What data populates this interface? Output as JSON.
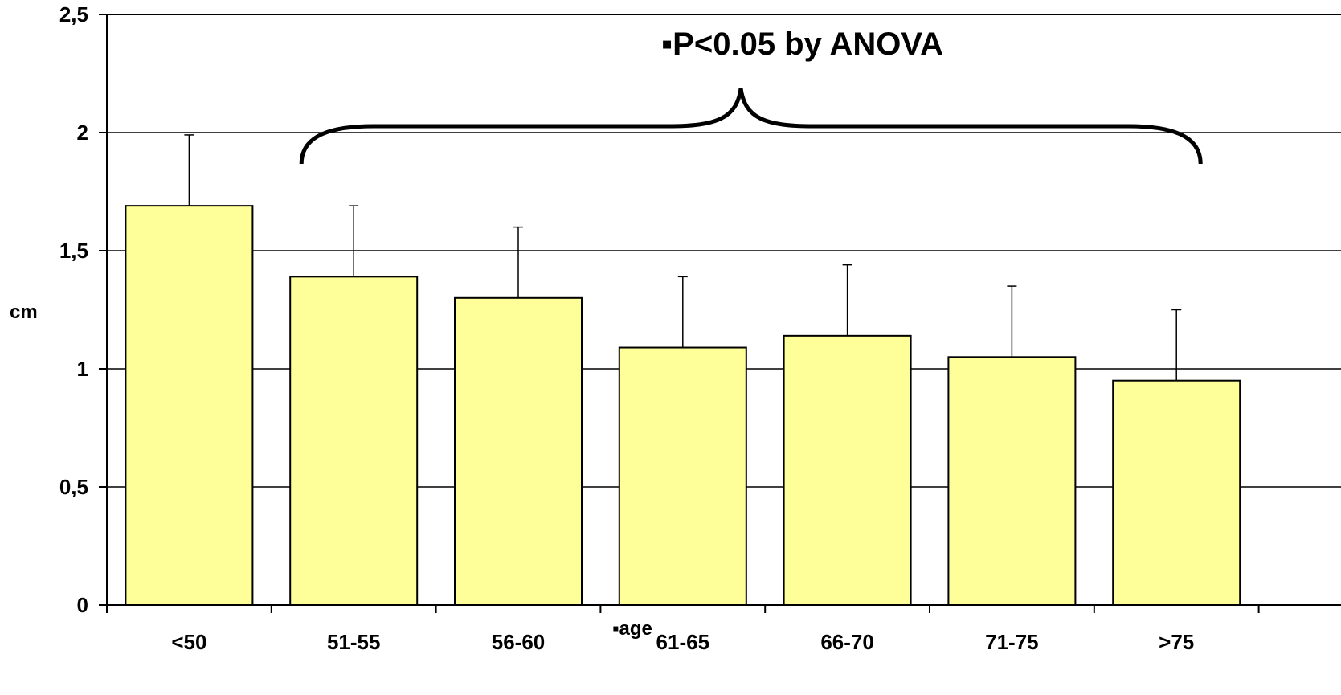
{
  "chart_data": {
    "type": "bar",
    "title": "",
    "xlabel": "▪age",
    "ylabel": "cm",
    "categories": [
      "<50",
      "51-55",
      "56-60",
      "61-65",
      "66-70",
      "71-75",
      ">75"
    ],
    "values": [
      1.69,
      1.39,
      1.3,
      1.09,
      1.14,
      1.05,
      0.95
    ],
    "error_upper": [
      1.99,
      1.69,
      1.6,
      1.39,
      1.44,
      1.35,
      1.25
    ],
    "ylim": [
      0,
      2.5
    ],
    "yticks": [
      "0",
      "0,5",
      "1",
      "1,5",
      "2",
      "2,5"
    ],
    "ytick_values": [
      0,
      0.5,
      1,
      1.5,
      2,
      2.5
    ],
    "grid": true,
    "bar_color": "#ffff99",
    "annotation": {
      "text": "▪P<0.05 by ANOVA",
      "bracket_from": "51-55",
      "bracket_to": ">75"
    }
  }
}
